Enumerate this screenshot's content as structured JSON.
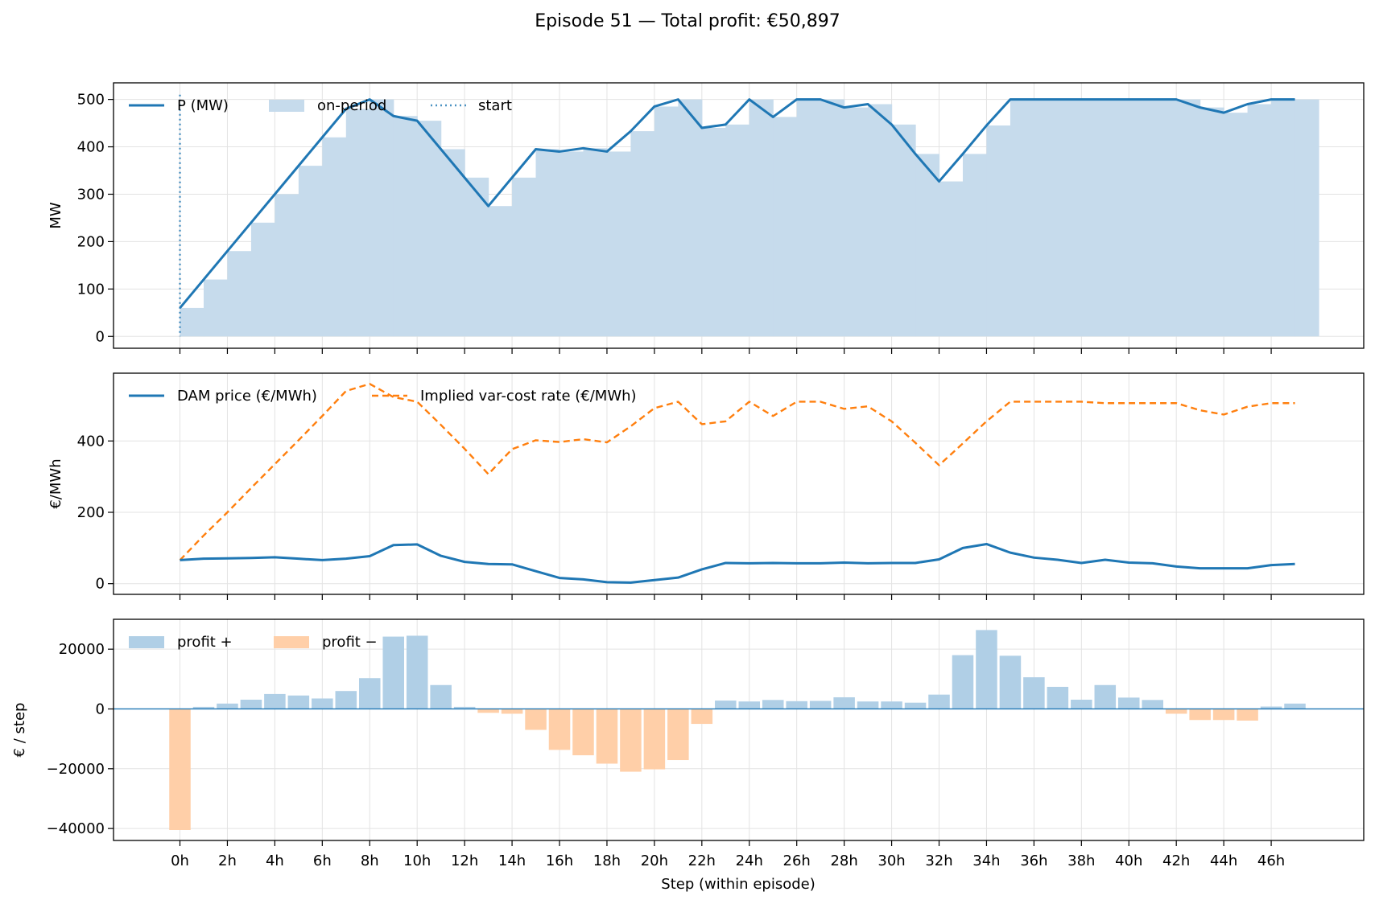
{
  "figure": {
    "title": "Episode 51 — Total profit: €50,897"
  },
  "colors": {
    "blue": "#1f77b4",
    "orange": "#ff7f0e",
    "fill_blue": "#c6dbec",
    "bar_pos": "#b0cfe6",
    "bar_neg": "#ffcfa8",
    "grid": "#e3e3e3"
  },
  "chart_data": [
    {
      "type": "line",
      "ylabel": "MW",
      "ylim": [
        -25,
        535
      ],
      "yticks": [
        0,
        100,
        200,
        300,
        400,
        500
      ],
      "grid": true,
      "legend_position": "top-left",
      "legend": [
        "P (MW)",
        "on-period",
        "start"
      ],
      "series": [
        {
          "name": "P (MW)",
          "style": "line",
          "x": [
            0,
            1,
            2,
            3,
            4,
            5,
            6,
            7,
            8,
            9,
            10,
            11,
            12,
            13,
            14,
            15,
            16,
            17,
            18,
            19,
            20,
            21,
            22,
            23,
            24,
            25,
            26,
            27,
            28,
            29,
            30,
            31,
            32,
            33,
            34,
            35,
            36,
            37,
            38,
            39,
            40,
            41,
            42,
            43,
            44,
            45,
            46,
            47
          ],
          "values": [
            60,
            120,
            180,
            240,
            300,
            360,
            420,
            480,
            500,
            465,
            455,
            395,
            335,
            275,
            335,
            395,
            390,
            397,
            390,
            433,
            485,
            500,
            440,
            447,
            500,
            463,
            500,
            500,
            483,
            490,
            447,
            385,
            327,
            385,
            445,
            500,
            500,
            500,
            500,
            500,
            500,
            500,
            500,
            483,
            472,
            490,
            500,
            500
          ]
        },
        {
          "name": "on-period",
          "style": "step-fill",
          "x": [
            0,
            1,
            2,
            3,
            4,
            5,
            6,
            7,
            8,
            9,
            10,
            11,
            12,
            13,
            14,
            15,
            16,
            17,
            18,
            19,
            20,
            21,
            22,
            23,
            24,
            25,
            26,
            27,
            28,
            29,
            30,
            31,
            32,
            33,
            34,
            35,
            36,
            37,
            38,
            39,
            40,
            41,
            42,
            43,
            44,
            45,
            46,
            47
          ],
          "values": [
            60,
            120,
            180,
            240,
            300,
            360,
            420,
            480,
            500,
            465,
            455,
            395,
            335,
            275,
            335,
            395,
            390,
            397,
            390,
            433,
            485,
            500,
            440,
            447,
            500,
            463,
            500,
            500,
            483,
            490,
            447,
            385,
            327,
            385,
            445,
            500,
            500,
            500,
            500,
            500,
            500,
            500,
            500,
            483,
            472,
            490,
            500,
            500
          ]
        },
        {
          "name": "start",
          "style": "vline",
          "x": [
            0
          ]
        }
      ]
    },
    {
      "type": "line",
      "ylabel": "€/MWh",
      "ylim": [
        -30,
        590
      ],
      "yticks": [
        0,
        200,
        400
      ],
      "grid": true,
      "legend_position": "top-left",
      "legend": [
        "DAM price (€/MWh)",
        "Implied var-cost rate (€/MWh)"
      ],
      "series": [
        {
          "name": "DAM price (€/MWh)",
          "style": "solid",
          "x": [
            0,
            1,
            2,
            3,
            4,
            5,
            6,
            7,
            8,
            9,
            10,
            11,
            12,
            13,
            14,
            15,
            16,
            17,
            18,
            19,
            20,
            21,
            22,
            23,
            24,
            25,
            26,
            27,
            28,
            29,
            30,
            31,
            32,
            33,
            34,
            35,
            36,
            37,
            38,
            39,
            40,
            41,
            42,
            43,
            44,
            45,
            46,
            47
          ],
          "values": [
            66,
            70,
            71,
            72,
            74,
            70,
            66,
            70,
            77,
            108,
            110,
            78,
            61,
            55,
            54,
            35,
            16,
            12,
            4,
            3,
            10,
            17,
            40,
            58,
            57,
            58,
            57,
            57,
            59,
            57,
            58,
            58,
            68,
            100,
            111,
            87,
            73,
            67,
            58,
            67,
            59,
            57,
            48,
            43,
            43,
            43,
            52,
            55
          ]
        },
        {
          "name": "Implied var-cost rate (€/MWh)",
          "style": "dashed",
          "x": [
            0,
            1,
            2,
            3,
            4,
            5,
            6,
            7,
            8,
            9,
            10,
            11,
            12,
            13,
            14,
            15,
            16,
            17,
            18,
            19,
            20,
            21,
            22,
            23,
            24,
            25,
            26,
            27,
            28,
            29,
            30,
            31,
            32,
            33,
            34,
            35,
            36,
            37,
            38,
            39,
            40,
            41,
            42,
            43,
            44,
            45,
            46,
            47
          ],
          "values": [
            66,
            135,
            200,
            268,
            335,
            402,
            470,
            540,
            560,
            523,
            510,
            445,
            378,
            307,
            377,
            402,
            397,
            405,
            396,
            441,
            492,
            510,
            447,
            455,
            510,
            470,
            510,
            510,
            490,
            497,
            455,
            395,
            332,
            393,
            455,
            510,
            510,
            510,
            510,
            506,
            506,
            506,
            506,
            486,
            474,
            496,
            506,
            506
          ]
        }
      ]
    },
    {
      "type": "bar",
      "ylabel": "€ / step",
      "xlabel": "Step (within episode)",
      "ylim": [
        -44000,
        30000
      ],
      "yticks": [
        -40000,
        -20000,
        0,
        20000
      ],
      "grid": true,
      "legend_position": "top-left",
      "legend": [
        "profit +",
        "profit −"
      ],
      "x_tick_steps": [
        0,
        2,
        4,
        6,
        8,
        10,
        12,
        14,
        16,
        18,
        20,
        22,
        24,
        26,
        28,
        30,
        32,
        34,
        36,
        38,
        40,
        42,
        44,
        46
      ],
      "x_tick_labels": [
        "0h",
        "2h",
        "4h",
        "6h",
        "8h",
        "10h",
        "12h",
        "14h",
        "16h",
        "18h",
        "20h",
        "22h",
        "24h",
        "26h",
        "28h",
        "30h",
        "32h",
        "34h",
        "36h",
        "38h",
        "40h",
        "42h",
        "44h",
        "46h"
      ],
      "x": [
        0,
        1,
        2,
        3,
        4,
        5,
        6,
        7,
        8,
        9,
        10,
        11,
        12,
        13,
        14,
        15,
        16,
        17,
        18,
        19,
        20,
        21,
        22,
        23,
        24,
        25,
        26,
        27,
        28,
        29,
        30,
        31,
        32,
        33,
        34,
        35,
        36,
        37,
        38,
        39,
        40,
        41,
        42,
        43,
        44,
        45,
        46,
        47
      ],
      "values": [
        -40500,
        700,
        1800,
        3100,
        5000,
        4500,
        3500,
        6000,
        10300,
        24200,
        24500,
        8000,
        700,
        -1300,
        -1600,
        -7000,
        -13700,
        -15500,
        -18300,
        -21000,
        -20200,
        -17100,
        -5000,
        2800,
        2500,
        3000,
        2600,
        2700,
        3900,
        2500,
        2500,
        2100,
        4800,
        18000,
        26400,
        17800,
        10600,
        7400,
        3100,
        8000,
        3800,
        3000,
        -1600,
        -3700,
        -3700,
        -3900,
        800,
        1800
      ]
    }
  ]
}
